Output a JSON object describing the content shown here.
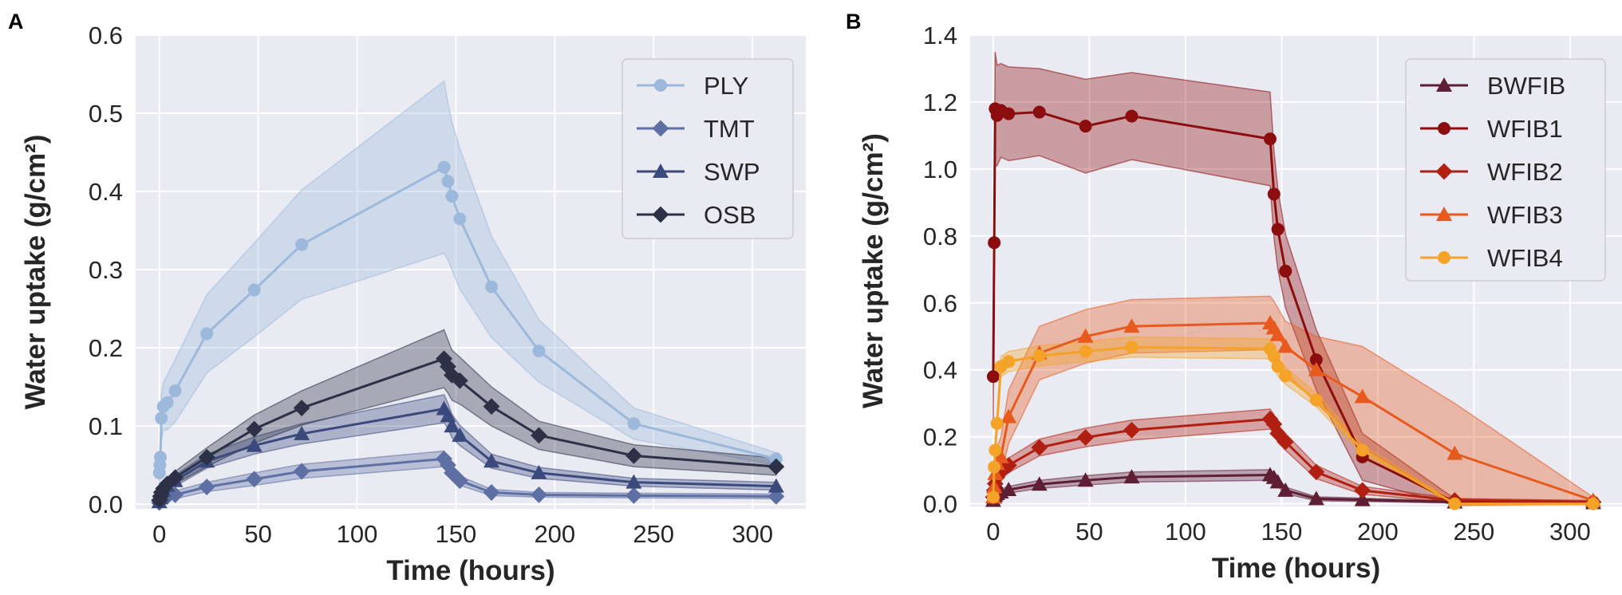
{
  "chart_data": [
    {
      "type": "line",
      "panel_label": "A",
      "xlabel": "Time (hours)",
      "ylabel": "Water uptake (g/cm²)",
      "xlim": [
        -12,
        327
      ],
      "ylim": [
        -0.006,
        0.6
      ],
      "xticks": [
        0,
        50,
        100,
        150,
        200,
        250,
        300
      ],
      "yticks": [
        0.0,
        0.1,
        0.2,
        0.3,
        0.4,
        0.5,
        0.6
      ],
      "ytick_labels": [
        "0.0",
        "0.1",
        "0.2",
        "0.3",
        "0.4",
        "0.5",
        "0.6"
      ],
      "grid": true,
      "legend_position": "top-right",
      "series": [
        {
          "name": "PLY",
          "marker": "circle",
          "color": "#9cb9dc",
          "x": [
            0,
            0.25,
            0.5,
            1,
            2,
            4,
            8,
            24,
            48,
            72,
            144,
            146,
            148,
            152,
            168,
            192,
            240,
            312
          ],
          "y": [
            0.04,
            0.05,
            0.06,
            0.11,
            0.125,
            0.13,
            0.145,
            0.218,
            0.274,
            0.332,
            0.431,
            0.413,
            0.394,
            0.365,
            0.278,
            0.196,
            0.103,
            0.058
          ],
          "band": [
            0.015,
            0.02,
            0.02,
            0.03,
            0.03,
            0.035,
            0.04,
            0.05,
            0.06,
            0.07,
            0.11,
            0.1,
            0.095,
            0.09,
            0.065,
            0.04,
            0.02,
            0.008
          ]
        },
        {
          "name": "TMT",
          "marker": "diamond",
          "color": "#5d6fa3",
          "x": [
            0,
            0.5,
            1,
            2,
            4,
            8,
            24,
            48,
            72,
            144,
            146,
            148,
            152,
            168,
            192,
            240,
            312
          ],
          "y": [
            0.002,
            0.004,
            0.006,
            0.008,
            0.01,
            0.012,
            0.022,
            0.032,
            0.042,
            0.058,
            0.05,
            0.04,
            0.03,
            0.015,
            0.012,
            0.011,
            0.01
          ],
          "band": [
            0.002,
            0.003,
            0.003,
            0.004,
            0.005,
            0.005,
            0.006,
            0.008,
            0.009,
            0.01,
            0.009,
            0.008,
            0.006,
            0.004,
            0.003,
            0.003,
            0.003
          ]
        },
        {
          "name": "SWP",
          "marker": "triangle",
          "color": "#3a4a7d",
          "x": [
            0,
            0.5,
            1,
            2,
            4,
            8,
            24,
            48,
            72,
            144,
            146,
            148,
            152,
            168,
            192,
            240,
            312
          ],
          "y": [
            0.003,
            0.008,
            0.012,
            0.018,
            0.024,
            0.03,
            0.055,
            0.075,
            0.09,
            0.122,
            0.113,
            0.1,
            0.088,
            0.055,
            0.04,
            0.028,
            0.023
          ],
          "band": [
            0.003,
            0.004,
            0.005,
            0.005,
            0.006,
            0.007,
            0.009,
            0.011,
            0.013,
            0.018,
            0.016,
            0.015,
            0.013,
            0.009,
            0.007,
            0.005,
            0.005
          ]
        },
        {
          "name": "OSB",
          "marker": "diamond",
          "color": "#2c3147",
          "x": [
            0,
            0.5,
            1,
            2,
            4,
            8,
            24,
            48,
            72,
            144,
            146,
            148,
            152,
            168,
            192,
            240,
            312
          ],
          "y": [
            0.005,
            0.01,
            0.015,
            0.02,
            0.026,
            0.034,
            0.06,
            0.096,
            0.123,
            0.186,
            0.176,
            0.165,
            0.158,
            0.125,
            0.088,
            0.062,
            0.048
          ],
          "band": [
            0.003,
            0.004,
            0.005,
            0.006,
            0.007,
            0.008,
            0.012,
            0.018,
            0.022,
            0.037,
            0.034,
            0.032,
            0.03,
            0.025,
            0.018,
            0.014,
            0.011
          ]
        }
      ]
    },
    {
      "type": "line",
      "panel_label": "B",
      "xlabel": "Time (hours)",
      "ylabel": "Water uptake (g/cm²)",
      "xlim": [
        -12,
        327
      ],
      "ylim": [
        -0.008,
        1.4
      ],
      "xticks": [
        0,
        50,
        100,
        150,
        200,
        250,
        300
      ],
      "yticks": [
        0.0,
        0.2,
        0.4,
        0.6,
        0.8,
        1.0,
        1.2,
        1.4
      ],
      "ytick_labels": [
        "0.0",
        "0.2",
        "0.4",
        "0.6",
        "0.8",
        "1.0",
        "1.2",
        "1.4"
      ],
      "grid": true,
      "legend_position": "top-right",
      "series": [
        {
          "name": "BWFIB",
          "marker": "triangle",
          "color": "#5e1e33",
          "x": [
            0,
            0.5,
            1,
            2,
            4,
            8,
            24,
            48,
            72,
            144,
            146,
            148,
            152,
            168,
            192,
            240,
            312
          ],
          "y": [
            0.01,
            0.02,
            0.025,
            0.03,
            0.035,
            0.042,
            0.058,
            0.07,
            0.08,
            0.086,
            0.078,
            0.065,
            0.04,
            0.015,
            0.012,
            0.005,
            0.003
          ],
          "band": [
            0.004,
            0.006,
            0.007,
            0.008,
            0.009,
            0.01,
            0.012,
            0.014,
            0.015,
            0.016,
            0.015,
            0.013,
            0.01,
            0.006,
            0.005,
            0.003,
            0.002
          ]
        },
        {
          "name": "WFIB1",
          "marker": "circle",
          "color": "#8b0d0d",
          "x": [
            0,
            0.5,
            1,
            2,
            4,
            8,
            24,
            48,
            72,
            144,
            146,
            148,
            152,
            168,
            192,
            240,
            312
          ],
          "y": [
            0.38,
            0.78,
            1.18,
            1.16,
            1.175,
            1.165,
            1.17,
            1.128,
            1.158,
            1.09,
            0.925,
            0.82,
            0.695,
            0.43,
            0.14,
            0.005,
            0.005
          ],
          "band": [
            0.15,
            0.15,
            0.17,
            0.15,
            0.14,
            0.14,
            0.13,
            0.14,
            0.13,
            0.14,
            0.13,
            0.12,
            0.11,
            0.09,
            0.07,
            0.01,
            0.005
          ]
        },
        {
          "name": "WFIB2",
          "marker": "diamond",
          "color": "#b01f11",
          "x": [
            0,
            0.5,
            1,
            2,
            4,
            8,
            24,
            48,
            72,
            144,
            146,
            148,
            152,
            168,
            192,
            240,
            312
          ],
          "y": [
            0.02,
            0.04,
            0.06,
            0.08,
            0.095,
            0.115,
            0.168,
            0.198,
            0.22,
            0.253,
            0.238,
            0.21,
            0.185,
            0.095,
            0.04,
            0.01,
            0.005
          ],
          "band": [
            0.01,
            0.012,
            0.015,
            0.018,
            0.02,
            0.022,
            0.025,
            0.028,
            0.03,
            0.03,
            0.029,
            0.027,
            0.025,
            0.02,
            0.012,
            0.006,
            0.004
          ]
        },
        {
          "name": "WFIB3",
          "marker": "triangle",
          "color": "#e65a1e",
          "x": [
            0,
            0.5,
            1,
            2,
            4,
            8,
            24,
            48,
            72,
            144,
            146,
            148,
            152,
            168,
            192,
            240,
            312
          ],
          "y": [
            0.02,
            0.05,
            0.09,
            0.12,
            0.14,
            0.26,
            0.45,
            0.5,
            0.53,
            0.54,
            0.525,
            0.505,
            0.47,
            0.4,
            0.32,
            0.15,
            0.01
          ],
          "band": [
            0.02,
            0.03,
            0.04,
            0.05,
            0.06,
            0.08,
            0.08,
            0.08,
            0.08,
            0.08,
            0.08,
            0.08,
            0.075,
            0.1,
            0.15,
            0.15,
            0.01
          ]
        },
        {
          "name": "WFIB4",
          "marker": "circle",
          "color": "#f4a228",
          "x": [
            0,
            0.5,
            1,
            2,
            4,
            8,
            24,
            48,
            72,
            144,
            146,
            148,
            152,
            168,
            192,
            240,
            312
          ],
          "y": [
            0.02,
            0.11,
            0.16,
            0.24,
            0.41,
            0.425,
            0.442,
            0.455,
            0.468,
            0.463,
            0.44,
            0.41,
            0.382,
            0.31,
            0.16,
            0.0,
            0.0
          ],
          "band": [
            0.01,
            0.02,
            0.02,
            0.02,
            0.03,
            0.03,
            0.03,
            0.03,
            0.03,
            0.03,
            0.03,
            0.028,
            0.025,
            0.02,
            0.015,
            0.005,
            0.003
          ]
        }
      ]
    }
  ]
}
